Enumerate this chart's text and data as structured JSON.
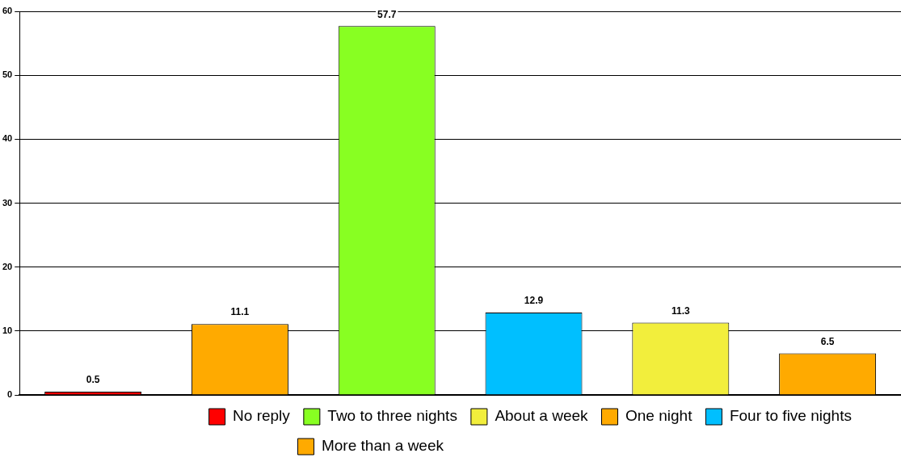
{
  "chart_data": {
    "type": "bar",
    "categories": [
      null,
      null,
      null,
      null,
      null,
      null
    ],
    "series": [
      {
        "name": "No reply",
        "color": "#ff0000",
        "values": [
          0.5,
          null,
          null,
          null,
          null,
          null
        ]
      },
      {
        "name": "One night",
        "color": "#ffaa00",
        "values": [
          null,
          11.1,
          null,
          null,
          null,
          null
        ]
      },
      {
        "name": "Two to three nights",
        "color": "#88ff22",
        "values": [
          null,
          null,
          57.7,
          null,
          null,
          null
        ]
      },
      {
        "name": "Four to five nights",
        "color": "#00bfff",
        "values": [
          null,
          null,
          null,
          12.9,
          null,
          null
        ]
      },
      {
        "name": "About a week",
        "color": "#f2ee3c",
        "values": [
          null,
          null,
          null,
          null,
          11.3,
          null
        ]
      },
      {
        "name": "More than a week",
        "color": "#ffaa00",
        "values": [
          null,
          null,
          null,
          null,
          null,
          6.5
        ]
      }
    ],
    "ylim": [
      0,
      60
    ],
    "yticks": [
      0,
      10,
      20,
      30,
      40,
      50,
      60
    ],
    "grid": "y",
    "legend": "bottom",
    "tick_labels": "y",
    "data_labels": true
  }
}
